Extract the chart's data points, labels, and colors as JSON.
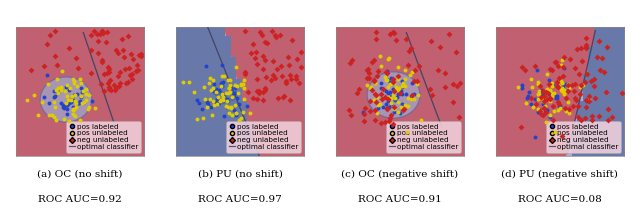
{
  "panels": [
    {
      "title": "(a) OC (no shift)",
      "auc": "ROC AUC=0.92"
    },
    {
      "title": "(b) PU (no shift)",
      "auc": "ROC AUC=0.97"
    },
    {
      "title": "(c) OC (negative shift)",
      "auc": "ROC AUC=0.91"
    },
    {
      "title": "(d) PU (negative shift)",
      "auc": "ROC AUC=0.08"
    }
  ],
  "legend_items": [
    {
      "label": "pos labeled",
      "color": "#2244cc",
      "marker": "o"
    },
    {
      "label": "pos unlabeled",
      "color": "#ddcc00",
      "marker": "o"
    },
    {
      "label": "neg unlabeled",
      "color": "#cc2222",
      "marker": "D"
    },
    {
      "label": "optimal classifier",
      "color": "#555566",
      "marker": "line"
    }
  ],
  "pink_bg": "#d9879a",
  "pink_dot": "#c06070",
  "pink_bg_light": "#e0a0b0",
  "blue_bg": "#9090bb",
  "blue_dot": "#6878a8",
  "blue_bg_light": "#aaaacc",
  "circle_fill": "#a0a8cc",
  "circle_edge": "#6068a0",
  "line_color": "#444466",
  "legend_bg": "#f0d0dc",
  "title_fontsize": 7.5,
  "auc_fontsize": 7.5,
  "legend_fontsize": 5.2
}
